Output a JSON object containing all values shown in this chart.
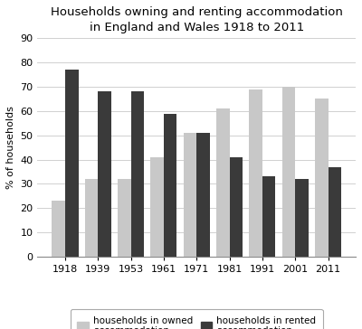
{
  "title_line1": "Households owning and renting accommodation",
  "title_line2": "in England and Wales 1918 to 2011",
  "years": [
    "1918",
    "1939",
    "1953",
    "1961",
    "1971",
    "1981",
    "1991",
    "2001",
    "2011"
  ],
  "owned": [
    23,
    32,
    32,
    41,
    51,
    61,
    69,
    70,
    65
  ],
  "rented": [
    77,
    68,
    68,
    59,
    51,
    41,
    33,
    32,
    37
  ],
  "owned_color": "#c8c8c8",
  "rented_color": "#3a3a3a",
  "ylabel": "% of households",
  "ylim": [
    0,
    90
  ],
  "yticks": [
    0,
    10,
    20,
    30,
    40,
    50,
    60,
    70,
    80,
    90
  ],
  "legend_owned": "households in owned\naccommodation",
  "legend_rented": "households in rented\naccommodation",
  "title_fontsize": 9.5,
  "axis_fontsize": 8,
  "tick_fontsize": 8,
  "legend_fontsize": 7.5,
  "bar_width": 0.4,
  "bar_gap": 0.0
}
